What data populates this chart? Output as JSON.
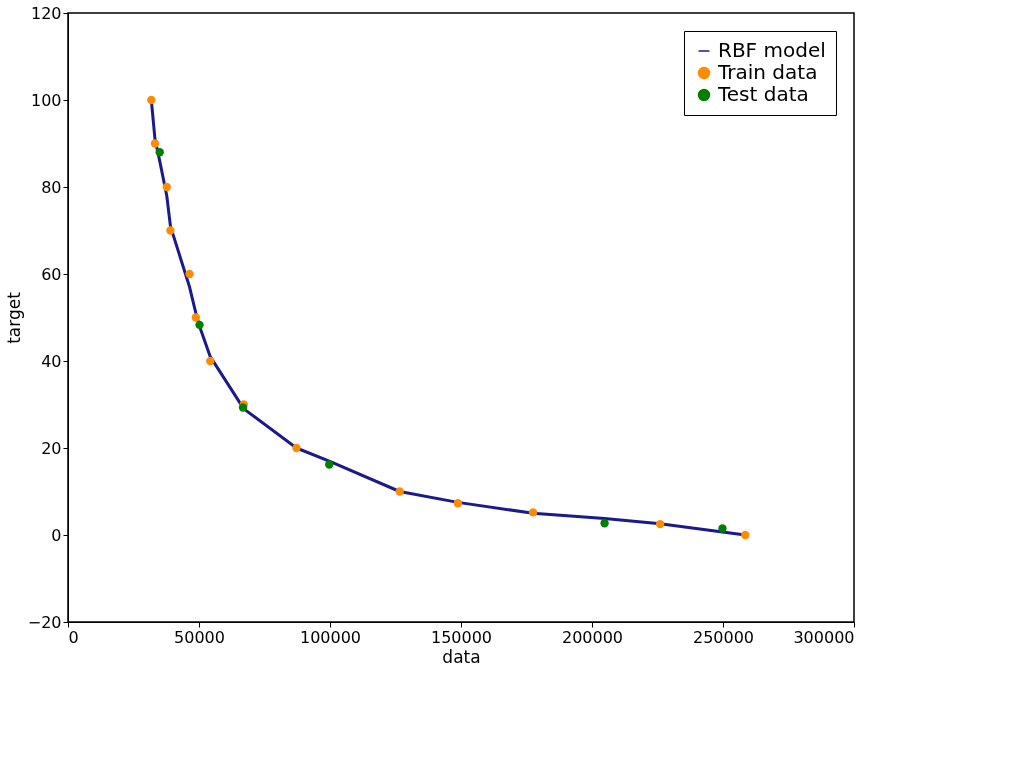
{
  "chart_data": {
    "type": "line",
    "xlabel": "data",
    "ylabel": "target",
    "xlim": [
      0,
      300000
    ],
    "ylim": [
      -20,
      120
    ],
    "xticks": [
      0,
      {
        "value": 50000,
        "label": "50000"
      },
      {
        "value": 100000,
        "label": "100000"
      },
      {
        "value": 150000,
        "label": "150000"
      },
      {
        "value": 200000,
        "label": "200000"
      },
      {
        "value": 250000,
        "label": "250000"
      },
      {
        "value": 300000,
        "label": "300000"
      }
    ],
    "yticks": [
      -20,
      0,
      20,
      40,
      60,
      80,
      100,
      120
    ],
    "grid": false,
    "legend": "top right",
    "series": [
      {
        "name": "RBF model",
        "color": "#1a1a8c",
        "x": [
          31800,
          33200,
          35000,
          37700,
          39100,
          46400,
          48800,
          50200,
          54300,
          67100,
          87200,
          99700,
          126600,
          148800,
          177500,
          204800,
          226000,
          258500
        ],
        "values": [
          100,
          91,
          86,
          78,
          71,
          57,
          51,
          48,
          41,
          29,
          20,
          17,
          10,
          7.5,
          5,
          3.8,
          2.6,
          0
        ]
      },
      {
        "name": "Train data",
        "type": "scatter",
        "color": "#ff8c00",
        "x": [
          31800,
          33200,
          37700,
          39100,
          46400,
          48800,
          54300,
          67100,
          87200,
          126600,
          148800,
          177500,
          226000,
          258500
        ],
        "values": [
          100,
          90,
          80,
          70,
          60,
          50,
          40,
          30,
          20,
          10,
          7.3,
          5.2,
          2.5,
          0
        ]
      },
      {
        "name": "Test data",
        "type": "scatter",
        "color": "#008000",
        "x": [
          35000,
          50200,
          66800,
          99700,
          204800,
          249800
        ],
        "values": [
          88,
          48.3,
          29.3,
          16.2,
          2.7,
          1.5
        ]
      }
    ]
  }
}
